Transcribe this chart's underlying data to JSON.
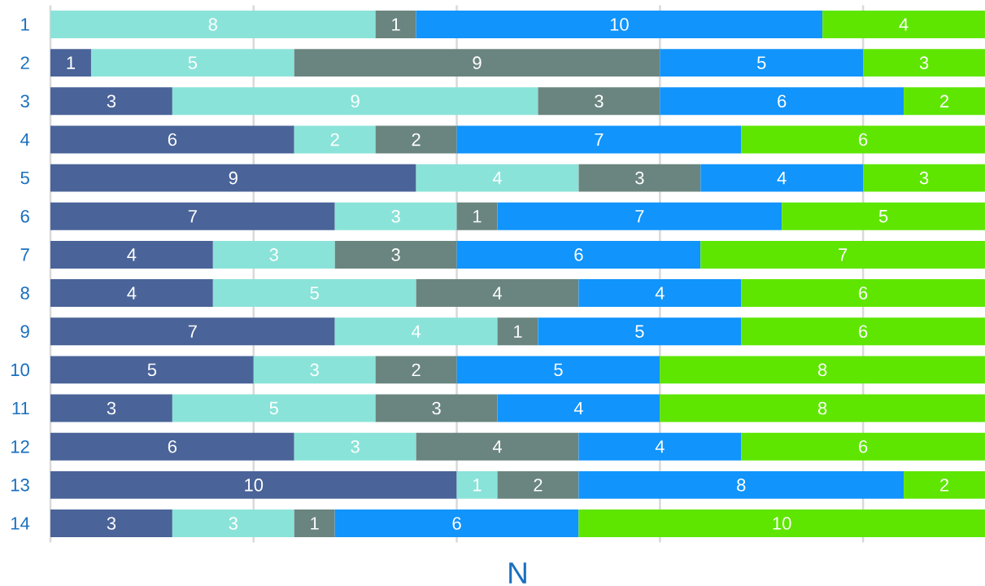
{
  "chart_data": {
    "type": "bar",
    "orientation": "horizontal",
    "stacked": true,
    "categories": [
      "1",
      "2",
      "3",
      "4",
      "5",
      "6",
      "7",
      "8",
      "9",
      "10",
      "11",
      "12",
      "13",
      "14"
    ],
    "series": [
      {
        "color": "#4a6499",
        "values": [
          null,
          1,
          3,
          6,
          9,
          7,
          4,
          4,
          7,
          5,
          3,
          6,
          10,
          3
        ],
        "value_labels": [
          null,
          "1",
          "3",
          "6",
          "9",
          "7",
          "4",
          "4",
          "7",
          "5",
          "3",
          "6",
          "10",
          "3"
        ]
      },
      {
        "color": "#8ae3d9",
        "values": [
          8,
          5,
          9,
          2,
          4,
          3,
          3,
          5,
          4,
          3,
          5,
          3,
          1,
          3
        ],
        "value_labels": [
          "8",
          "5",
          "9",
          "2",
          "4",
          "3",
          "3",
          "5",
          "4",
          "3",
          "5",
          "3",
          "1",
          "3"
        ]
      },
      {
        "color": "#6a857f",
        "values": [
          1,
          9,
          3,
          2,
          3,
          1,
          3,
          4,
          1,
          2,
          3,
          4,
          2,
          1
        ],
        "value_labels": [
          "1",
          "9",
          "3",
          "2",
          "3",
          "1",
          "3",
          "4",
          "1",
          "2",
          "3",
          "4",
          "2",
          "1"
        ]
      },
      {
        "color": "#1194fb",
        "values": [
          10,
          5,
          6,
          7,
          4,
          7,
          6,
          4,
          5,
          5,
          4,
          4,
          8,
          6
        ],
        "value_labels": [
          "10",
          "5",
          "6",
          "7",
          "4",
          "7",
          "6",
          "4",
          "5",
          "5",
          "4",
          "4",
          "8",
          "6"
        ]
      },
      {
        "color": "#5ee600",
        "values": [
          4,
          3,
          2,
          6,
          3,
          5,
          7,
          6,
          6,
          8,
          8,
          6,
          2,
          10
        ],
        "value_labels": [
          "4",
          "3",
          "2",
          "6",
          "3",
          "5",
          "7",
          "6",
          "6",
          "8",
          "8",
          "6",
          "2",
          "10"
        ]
      }
    ],
    "xlabel": "N",
    "xlim": [
      0,
      23
    ],
    "xticks": [
      {
        "value": 0,
        "label": null
      },
      {
        "value": 5,
        "label": null
      },
      {
        "value": 10,
        "label": null
      },
      {
        "value": 15,
        "label": null
      },
      {
        "value": 20,
        "label": null
      }
    ],
    "grid": "x",
    "tick_labels": "y"
  }
}
